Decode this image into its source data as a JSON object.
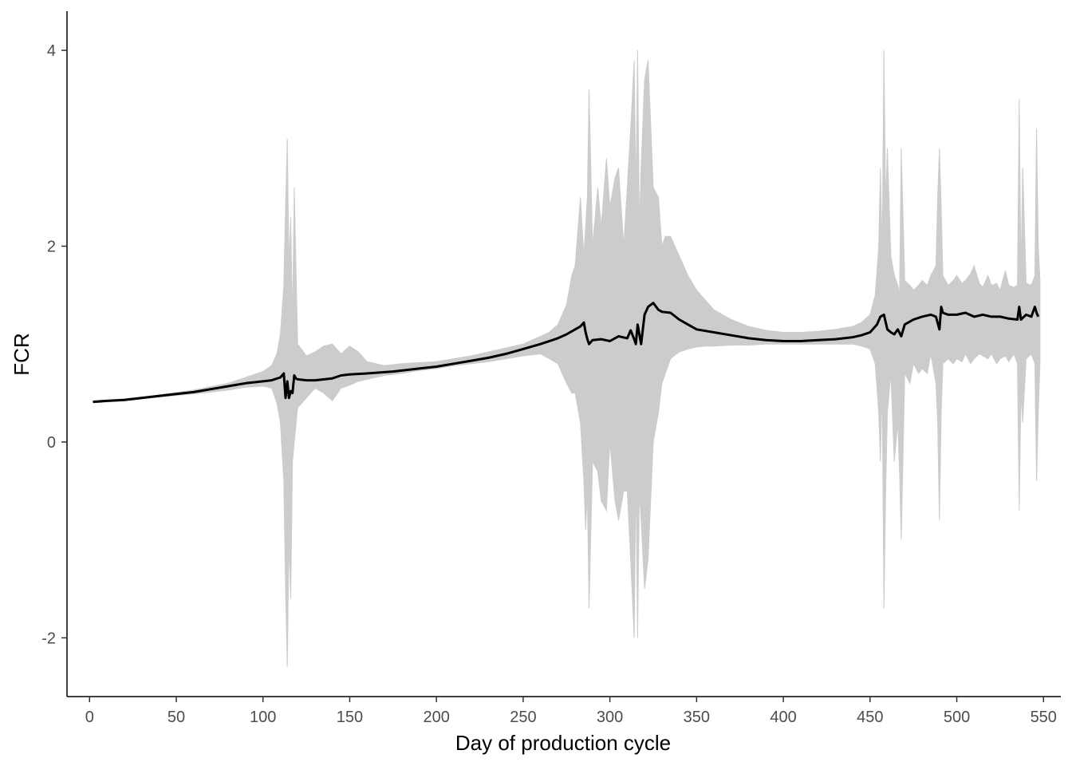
{
  "chart_data": {
    "type": "line",
    "title": "",
    "xlabel": "Day of production cycle",
    "ylabel": "FCR",
    "xlim": [
      -13,
      560
    ],
    "ylim": [
      -2.6,
      4.4
    ],
    "x_ticks": [
      0,
      50,
      100,
      150,
      200,
      250,
      300,
      350,
      400,
      450,
      500,
      550
    ],
    "y_ticks": [
      -2,
      0,
      2,
      4
    ],
    "grid": false,
    "legend": "none",
    "colors": {
      "line": "#000000",
      "band": "#cccccc",
      "axis": "#000000"
    },
    "series": [
      {
        "type": "line",
        "x": [
          2,
          10,
          20,
          30,
          40,
          50,
          60,
          70,
          80,
          90,
          100,
          105,
          110,
          112,
          113,
          114,
          115,
          116,
          117,
          118,
          119,
          120,
          125,
          130,
          140,
          145,
          150,
          160,
          175,
          190,
          200,
          210,
          220,
          230,
          240,
          250,
          260,
          270,
          275,
          280,
          283,
          285,
          286,
          287,
          288,
          290,
          295,
          300,
          305,
          310,
          312,
          314,
          315,
          316,
          318,
          320,
          322,
          325,
          328,
          330,
          335,
          340,
          345,
          350,
          360,
          370,
          380,
          390,
          400,
          410,
          420,
          430,
          440,
          445,
          450,
          454,
          456,
          458,
          460,
          462,
          464,
          466,
          468,
          470,
          475,
          480,
          485,
          488,
          490,
          491,
          492,
          495,
          500,
          505,
          510,
          515,
          520,
          525,
          530,
          535,
          536,
          537,
          540,
          543,
          545,
          546,
          547
        ],
        "y": [
          0.41,
          0.42,
          0.43,
          0.45,
          0.47,
          0.49,
          0.51,
          0.54,
          0.57,
          0.6,
          0.62,
          0.63,
          0.66,
          0.7,
          0.45,
          0.62,
          0.45,
          0.52,
          0.5,
          0.68,
          0.65,
          0.64,
          0.63,
          0.63,
          0.65,
          0.68,
          0.69,
          0.7,
          0.72,
          0.75,
          0.77,
          0.8,
          0.83,
          0.86,
          0.9,
          0.95,
          1.0,
          1.06,
          1.1,
          1.15,
          1.18,
          1.22,
          1.12,
          1.05,
          1.0,
          1.04,
          1.05,
          1.03,
          1.08,
          1.06,
          1.14,
          1.05,
          1.0,
          1.2,
          1.0,
          1.3,
          1.38,
          1.42,
          1.35,
          1.33,
          1.32,
          1.25,
          1.2,
          1.15,
          1.12,
          1.09,
          1.06,
          1.04,
          1.03,
          1.03,
          1.04,
          1.05,
          1.07,
          1.09,
          1.12,
          1.2,
          1.28,
          1.3,
          1.15,
          1.12,
          1.1,
          1.15,
          1.08,
          1.2,
          1.25,
          1.28,
          1.3,
          1.28,
          1.15,
          1.38,
          1.32,
          1.3,
          1.3,
          1.32,
          1.28,
          1.3,
          1.28,
          1.28,
          1.26,
          1.25,
          1.38,
          1.25,
          1.3,
          1.28,
          1.38,
          1.32,
          1.28
        ]
      },
      {
        "type": "band",
        "x": [
          2,
          20,
          40,
          60,
          80,
          90,
          100,
          105,
          108,
          110,
          112,
          113,
          114,
          115,
          116,
          117,
          118,
          120,
          125,
          130,
          135,
          140,
          145,
          150,
          155,
          160,
          170,
          180,
          190,
          200,
          210,
          220,
          230,
          240,
          250,
          260,
          265,
          270,
          275,
          278,
          280,
          283,
          285,
          286,
          287,
          288,
          290,
          293,
          295,
          298,
          300,
          303,
          305,
          308,
          310,
          312,
          314,
          315,
          316,
          317,
          318,
          320,
          322,
          325,
          328,
          330,
          332,
          335,
          340,
          345,
          350,
          355,
          360,
          370,
          380,
          390,
          400,
          410,
          420,
          430,
          440,
          445,
          450,
          453,
          455,
          456,
          457,
          458,
          459,
          460,
          462,
          464,
          466,
          467,
          468,
          470,
          473,
          475,
          478,
          480,
          483,
          485,
          488,
          489,
          490,
          491,
          492,
          495,
          498,
          500,
          503,
          505,
          508,
          510,
          513,
          515,
          518,
          520,
          523,
          525,
          528,
          530,
          533,
          535,
          536,
          537,
          538,
          540,
          543,
          545,
          546,
          547,
          548
        ],
        "upper": [
          0.42,
          0.44,
          0.48,
          0.53,
          0.6,
          0.66,
          0.72,
          0.78,
          0.9,
          1.1,
          1.6,
          2.4,
          3.1,
          1.8,
          2.3,
          1.2,
          2.6,
          1.0,
          0.88,
          0.92,
          0.98,
          1.0,
          0.9,
          0.98,
          0.92,
          0.82,
          0.78,
          0.8,
          0.81,
          0.82,
          0.85,
          0.88,
          0.92,
          0.96,
          1.0,
          1.08,
          1.12,
          1.2,
          1.4,
          1.7,
          1.8,
          2.5,
          1.9,
          2.2,
          2.5,
          3.6,
          2.0,
          2.6,
          2.2,
          2.9,
          2.4,
          2.7,
          2.8,
          2.0,
          2.6,
          3.2,
          3.9,
          2.5,
          4.0,
          2.2,
          2.8,
          3.7,
          3.9,
          2.6,
          2.5,
          2.0,
          2.1,
          2.1,
          1.9,
          1.7,
          1.55,
          1.45,
          1.35,
          1.25,
          1.18,
          1.14,
          1.12,
          1.12,
          1.13,
          1.15,
          1.18,
          1.22,
          1.3,
          1.5,
          2.0,
          2.8,
          1.9,
          4.0,
          2.4,
          3.0,
          1.9,
          1.7,
          1.6,
          1.5,
          3.0,
          1.65,
          1.6,
          1.55,
          1.6,
          1.65,
          1.6,
          1.7,
          1.8,
          2.5,
          3.0,
          2.4,
          1.7,
          1.6,
          1.65,
          1.7,
          1.62,
          1.65,
          1.72,
          1.8,
          1.62,
          1.58,
          1.7,
          1.6,
          1.62,
          1.55,
          1.75,
          1.6,
          1.58,
          1.6,
          3.5,
          1.7,
          2.8,
          1.62,
          1.6,
          1.7,
          3.2,
          2.0,
          1.65
        ],
        "lower": [
          0.4,
          0.42,
          0.46,
          0.49,
          0.53,
          0.56,
          0.57,
          0.55,
          0.4,
          0.2,
          -0.4,
          -1.5,
          -2.3,
          -1.0,
          -1.6,
          -0.2,
          0.0,
          0.35,
          0.45,
          0.55,
          0.5,
          0.42,
          0.55,
          0.58,
          0.62,
          0.64,
          0.68,
          0.7,
          0.73,
          0.75,
          0.78,
          0.8,
          0.82,
          0.85,
          0.88,
          0.9,
          0.85,
          0.8,
          0.6,
          0.5,
          0.5,
          0.2,
          -0.4,
          -0.9,
          -0.5,
          -1.7,
          -0.2,
          -0.3,
          -0.6,
          -0.7,
          0.0,
          -0.6,
          -0.8,
          -0.5,
          -0.5,
          -1.2,
          -2.0,
          -0.3,
          -2.0,
          -0.5,
          -0.8,
          -1.5,
          -1.2,
          0.0,
          0.3,
          0.6,
          0.7,
          0.85,
          0.92,
          0.95,
          0.97,
          0.98,
          0.98,
          0.99,
          0.99,
          1.0,
          1.0,
          1.0,
          1.0,
          1.0,
          1.0,
          0.98,
          0.95,
          0.8,
          0.3,
          -0.2,
          0.6,
          -1.7,
          -0.5,
          0.3,
          0.7,
          -0.2,
          0.2,
          -0.3,
          -1.0,
          0.7,
          0.6,
          0.8,
          0.7,
          0.75,
          0.7,
          0.9,
          0.6,
          0.2,
          -0.8,
          0.3,
          0.8,
          0.85,
          0.8,
          0.85,
          0.82,
          0.9,
          0.8,
          0.85,
          0.9,
          0.88,
          0.85,
          0.9,
          0.8,
          0.85,
          0.88,
          0.82,
          0.9,
          0.8,
          -0.7,
          0.5,
          0.2,
          0.85,
          0.9,
          0.8,
          -0.4,
          0.3,
          0.8
        ]
      }
    ]
  }
}
